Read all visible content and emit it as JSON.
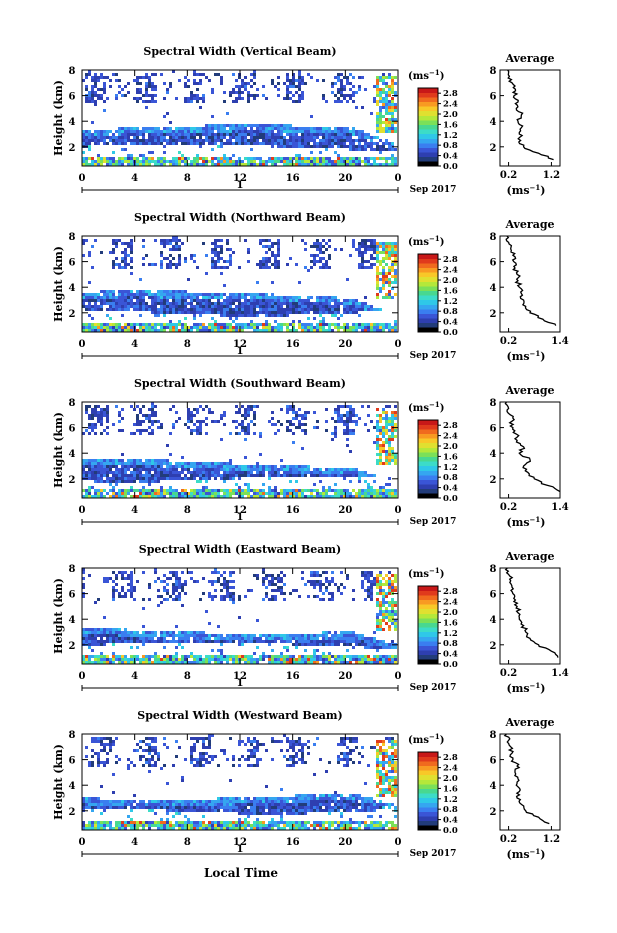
{
  "figure": {
    "xlabel": "Local Time",
    "date_label": "Sep 2017",
    "day_marker": "1",
    "height_label": "Height (km)",
    "colorbar_unit": "(ms",
    "colorbar_unit_exp": "−1",
    "average_title": "Average"
  },
  "colors": {
    "colorscale": [
      "#000000",
      "#223c7a",
      "#2e3fb0",
      "#3a55d6",
      "#3a7ef0",
      "#35a6f0",
      "#2fc8e8",
      "#3cdcc8",
      "#48d890",
      "#7be058",
      "#b4e83a",
      "#e0e030",
      "#f8c828",
      "#f89a22",
      "#f06a1e",
      "#e03a1c",
      "#c81818"
    ]
  },
  "chart_data": [
    {
      "type": "heatmap",
      "title": "Spectral Width (Vertical Beam)",
      "x_ticks": [
        "0",
        "4",
        "8",
        "12",
        "16",
        "20",
        "0"
      ],
      "y_ticks": [
        "2",
        "4",
        "6",
        "8"
      ],
      "xlim": [
        0,
        24
      ],
      "ylim": [
        0.5,
        8
      ],
      "colorbar_ticks": [
        "0.0",
        "0.4",
        "0.8",
        "1.2",
        "1.6",
        "2.0",
        "2.4",
        "2.8"
      ],
      "colorbar_range": [
        0,
        3.0
      ],
      "average_profile": {
        "xlabel": "(ms",
        "xlabel_exp": "−1",
        "x_ticks": [
          "0.2",
          "1.2"
        ],
        "xlim": [
          0,
          1.4
        ],
        "y_ticks": [
          "2",
          "4",
          "6",
          "8"
        ],
        "height_km": [
          1.0,
          1.5,
          2.0,
          2.5,
          3.0,
          3.5,
          4.0,
          4.5,
          5.0,
          5.5,
          6.0,
          6.5,
          7.0,
          7.5,
          8.0
        ],
        "width_ms": [
          1.25,
          0.9,
          0.55,
          0.48,
          0.45,
          0.5,
          0.42,
          0.5,
          0.38,
          0.42,
          0.33,
          0.36,
          0.28,
          0.22,
          0.18
        ]
      }
    },
    {
      "type": "heatmap",
      "title": "Spectral Width (Northward Beam)",
      "x_ticks": [
        "0",
        "4",
        "8",
        "12",
        "16",
        "20",
        "0"
      ],
      "y_ticks": [
        "2",
        "4",
        "6",
        "8"
      ],
      "xlim": [
        0,
        24
      ],
      "ylim": [
        0.5,
        8
      ],
      "colorbar_ticks": [
        "0.0",
        "0.4",
        "0.8",
        "1.2",
        "1.6",
        "2.0",
        "2.4",
        "2.8"
      ],
      "colorbar_range": [
        0,
        3.0
      ],
      "average_profile": {
        "xlabel": "(ms",
        "xlabel_exp": "−1",
        "x_ticks": [
          "0.2",
          "1.4"
        ],
        "xlim": [
          0,
          1.4
        ],
        "y_ticks": [
          "2",
          "4",
          "6",
          "8"
        ],
        "height_km": [
          1.0,
          1.5,
          2.0,
          2.5,
          3.0,
          3.5,
          4.0,
          4.5,
          5.0,
          5.5,
          6.0,
          6.5,
          7.0,
          7.5,
          8.0
        ],
        "width_ms": [
          1.3,
          1.0,
          0.7,
          0.6,
          0.55,
          0.5,
          0.45,
          0.42,
          0.4,
          0.35,
          0.32,
          0.3,
          0.25,
          0.2,
          0.16
        ]
      }
    },
    {
      "type": "heatmap",
      "title": "Spectral Width (Southward Beam)",
      "x_ticks": [
        "0",
        "4",
        "8",
        "12",
        "16",
        "20",
        "0"
      ],
      "y_ticks": [
        "2",
        "4",
        "6",
        "8"
      ],
      "xlim": [
        0,
        24
      ],
      "ylim": [
        0.5,
        8
      ],
      "colorbar_ticks": [
        "0.0",
        "0.4",
        "0.8",
        "1.2",
        "1.6",
        "2.0",
        "2.4",
        "2.8"
      ],
      "colorbar_range": [
        0,
        3.0
      ],
      "average_profile": {
        "xlabel": "(ms",
        "xlabel_exp": "−1",
        "x_ticks": [
          "0.2",
          "1.4"
        ],
        "xlim": [
          0,
          1.4
        ],
        "y_ticks": [
          "2",
          "4",
          "6",
          "8"
        ],
        "height_km": [
          1.0,
          1.5,
          2.0,
          2.5,
          3.0,
          3.5,
          4.0,
          4.5,
          5.0,
          5.5,
          6.0,
          6.5,
          7.0,
          7.5,
          8.0
        ],
        "width_ms": [
          1.4,
          1.1,
          0.8,
          0.65,
          0.55,
          0.7,
          0.45,
          0.55,
          0.4,
          0.38,
          0.3,
          0.28,
          0.24,
          0.2,
          0.15
        ]
      }
    },
    {
      "type": "heatmap",
      "title": "Spectral Width (Eastward Beam)",
      "x_ticks": [
        "0",
        "4",
        "8",
        "12",
        "16",
        "20",
        "0"
      ],
      "y_ticks": [
        "2",
        "4",
        "6",
        "8"
      ],
      "xlim": [
        0,
        24
      ],
      "ylim": [
        0.5,
        8
      ],
      "colorbar_ticks": [
        "0.0",
        "0.4",
        "0.8",
        "1.2",
        "1.6",
        "2.0",
        "2.4",
        "2.8"
      ],
      "colorbar_range": [
        0,
        3.0
      ],
      "average_profile": {
        "xlabel": "(ms",
        "xlabel_exp": "−1",
        "x_ticks": [
          "0.2",
          "1.4"
        ],
        "xlim": [
          0,
          1.4
        ],
        "y_ticks": [
          "2",
          "4",
          "6",
          "8"
        ],
        "height_km": [
          1.0,
          1.5,
          2.0,
          2.5,
          3.0,
          3.5,
          4.0,
          4.5,
          5.0,
          5.5,
          6.0,
          6.5,
          7.0,
          7.5,
          8.0
        ],
        "width_ms": [
          1.35,
          1.2,
          0.9,
          0.7,
          0.6,
          0.55,
          0.45,
          0.42,
          0.4,
          0.36,
          0.3,
          0.28,
          0.25,
          0.2,
          0.17
        ]
      }
    },
    {
      "type": "heatmap",
      "title": "Spectral Width (Westward Beam)",
      "x_ticks": [
        "0",
        "4",
        "8",
        "12",
        "16",
        "20",
        "0"
      ],
      "y_ticks": [
        "2",
        "4",
        "6",
        "8"
      ],
      "xlim": [
        0,
        24
      ],
      "ylim": [
        0.5,
        8
      ],
      "colorbar_ticks": [
        "0.0",
        "0.4",
        "0.8",
        "1.2",
        "1.6",
        "2.0",
        "2.4",
        "2.8"
      ],
      "colorbar_range": [
        0,
        3.0
      ],
      "average_profile": {
        "xlabel": "(ms",
        "xlabel_exp": "−1",
        "x_ticks": [
          "0.2",
          "1.2"
        ],
        "xlim": [
          0,
          1.4
        ],
        "y_ticks": [
          "2",
          "4",
          "6",
          "8"
        ],
        "height_km": [
          1.0,
          1.5,
          2.0,
          2.5,
          3.0,
          3.5,
          4.0,
          4.5,
          5.0,
          5.5,
          6.0,
          6.5,
          7.0,
          7.5,
          8.0
        ],
        "width_ms": [
          1.15,
          0.9,
          0.6,
          0.5,
          0.4,
          0.45,
          0.38,
          0.42,
          0.35,
          0.4,
          0.3,
          0.28,
          0.25,
          0.2,
          0.15
        ]
      }
    }
  ]
}
